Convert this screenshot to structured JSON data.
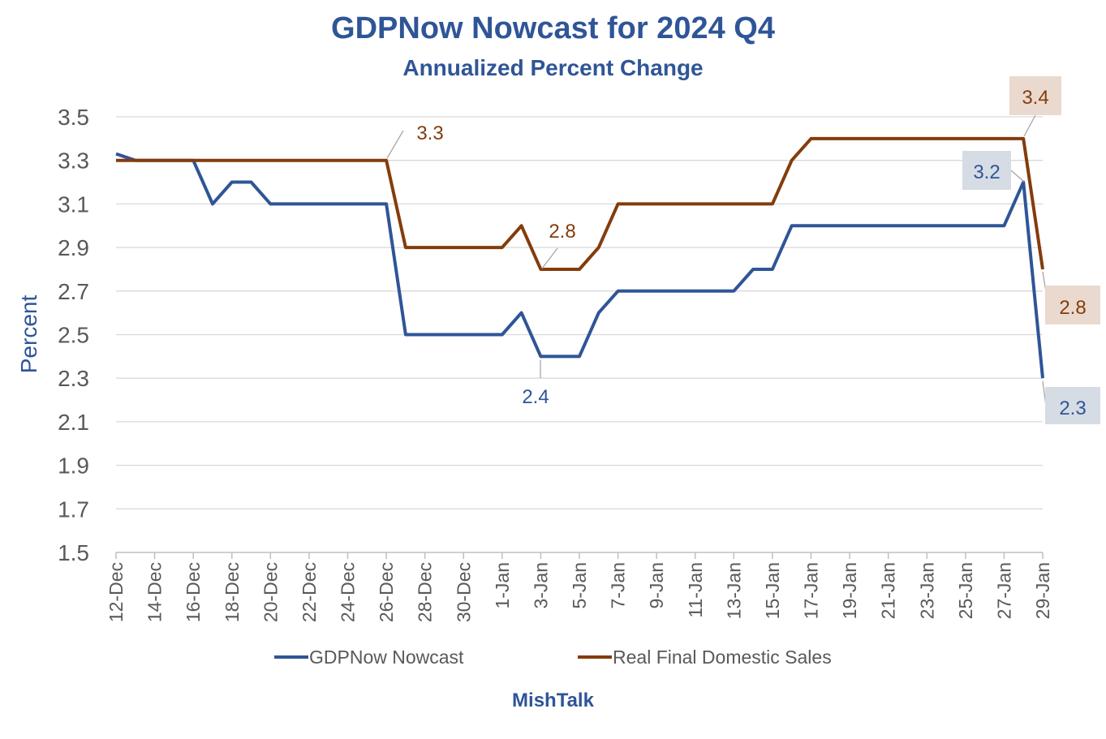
{
  "chart_data": {
    "type": "line",
    "title": "GDPNow Nowcast for 2024 Q4",
    "subtitle": "Annualized Percent Change",
    "ylabel": "Percent",
    "xlabel": "",
    "footer": "MishTalk",
    "ylim": [
      1.5,
      3.5
    ],
    "yticks": [
      "3.5",
      "3.3",
      "3.1",
      "2.9",
      "2.7",
      "2.5",
      "2.3",
      "2.1",
      "1.9",
      "1.7",
      "1.5"
    ],
    "xticks": [
      "12-Dec",
      "14-Dec",
      "16-Dec",
      "18-Dec",
      "20-Dec",
      "22-Dec",
      "24-Dec",
      "26-Dec",
      "28-Dec",
      "30-Dec",
      "1-Jan",
      "3-Jan",
      "5-Jan",
      "7-Jan",
      "9-Jan",
      "11-Jan",
      "13-Jan",
      "15-Jan",
      "17-Jan",
      "19-Jan",
      "21-Jan",
      "23-Jan",
      "25-Jan",
      "27-Jan",
      "29-Jan"
    ],
    "x": [
      "12-Dec",
      "13-Dec",
      "14-Dec",
      "15-Dec",
      "16-Dec",
      "17-Dec",
      "18-Dec",
      "19-Dec",
      "20-Dec",
      "21-Dec",
      "22-Dec",
      "23-Dec",
      "24-Dec",
      "25-Dec",
      "26-Dec",
      "27-Dec",
      "28-Dec",
      "29-Dec",
      "30-Dec",
      "31-Dec",
      "1-Jan",
      "2-Jan",
      "3-Jan",
      "4-Jan",
      "5-Jan",
      "6-Jan",
      "7-Jan",
      "8-Jan",
      "9-Jan",
      "10-Jan",
      "11-Jan",
      "12-Jan",
      "13-Jan",
      "14-Jan",
      "15-Jan",
      "16-Jan",
      "17-Jan",
      "18-Jan",
      "19-Jan",
      "20-Jan",
      "21-Jan",
      "22-Jan",
      "23-Jan",
      "24-Jan",
      "25-Jan",
      "26-Jan",
      "27-Jan",
      "28-Jan",
      "29-Jan"
    ],
    "grid": true,
    "legend_position": "bottom",
    "series": [
      {
        "name": "GDPNow Nowcast",
        "color": "#2f5597",
        "values": [
          3.33,
          3.3,
          3.3,
          3.3,
          3.3,
          3.1,
          3.2,
          3.2,
          3.1,
          3.1,
          3.1,
          3.1,
          3.1,
          3.1,
          3.1,
          2.5,
          2.5,
          2.5,
          2.5,
          2.5,
          2.5,
          2.6,
          2.4,
          2.4,
          2.4,
          2.6,
          2.7,
          2.7,
          2.7,
          2.7,
          2.7,
          2.7,
          2.7,
          2.8,
          2.8,
          3.0,
          3.0,
          3.0,
          3.0,
          3.0,
          3.0,
          3.0,
          3.0,
          3.0,
          3.0,
          3.0,
          3.0,
          3.2,
          2.3
        ]
      },
      {
        "name": "Real Final Domestic Sales",
        "color": "#843c0c",
        "values": [
          3.3,
          3.3,
          3.3,
          3.3,
          3.3,
          3.3,
          3.3,
          3.3,
          3.3,
          3.3,
          3.3,
          3.3,
          3.3,
          3.3,
          3.3,
          2.9,
          2.9,
          2.9,
          2.9,
          2.9,
          2.9,
          3.0,
          2.8,
          2.8,
          2.8,
          2.9,
          3.1,
          3.1,
          3.1,
          3.1,
          3.1,
          3.1,
          3.1,
          3.1,
          3.1,
          3.3,
          3.4,
          3.4,
          3.4,
          3.4,
          3.4,
          3.4,
          3.4,
          3.4,
          3.4,
          3.4,
          3.4,
          3.4,
          2.8
        ]
      }
    ],
    "annotations": [
      {
        "series": 1,
        "index": 14,
        "label": "3.3",
        "box": false
      },
      {
        "series": 1,
        "index": 22,
        "label": "2.8",
        "box": false
      },
      {
        "series": 0,
        "index": 22,
        "label": "2.4",
        "box": false
      },
      {
        "series": 1,
        "index": 47,
        "label": "3.4",
        "box": true
      },
      {
        "series": 0,
        "index": 47,
        "label": "3.2",
        "box": true
      },
      {
        "series": 1,
        "index": 48,
        "label": "2.8",
        "box": true
      },
      {
        "series": 0,
        "index": 48,
        "label": "2.3",
        "box": true
      }
    ],
    "annotation_box_colors": {
      "0": "#d6dce4",
      "1": "#ead9cf"
    }
  }
}
